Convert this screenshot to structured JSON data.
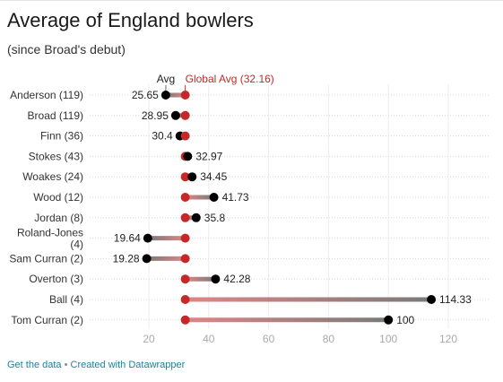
{
  "header": {
    "title": "Average of England bowlers",
    "subtitle": "(since Broad's debut)"
  },
  "footer": {
    "get_data": "Get the data",
    "separator": "•",
    "created_with": "Created with Datawrapper"
  },
  "colors": {
    "player_dot": "#000000",
    "global_dot": "#c62828",
    "global_line": "#e36d6d",
    "bar_high": "#7a7a7a",
    "bar_low": "#e08585",
    "grid": "#d8d8d8",
    "tick_text": "#aaaaaa"
  },
  "chart_data": {
    "type": "dot-range",
    "title": "Average of England bowlers",
    "subtitle": "(since Broad's debut)",
    "legend": {
      "player": "Avg",
      "reference": "Global Avg (32.16)"
    },
    "reference_value": 32.16,
    "categories": [
      "Anderson (119)",
      "Broad (119)",
      "Finn (36)",
      "Stokes (43)",
      "Woakes (24)",
      "Wood (12)",
      "Jordan (8)",
      "Roland-Jones (4)",
      "Sam Curran (2)",
      "Overton (3)",
      "Ball (4)",
      "Tom Curran (2)"
    ],
    "values": [
      25.65,
      28.95,
      30.4,
      32.97,
      34.45,
      41.73,
      35.8,
      19.64,
      19.28,
      42.28,
      114.33,
      100
    ],
    "labels": [
      "25.65",
      "28.95",
      "30.4",
      "32.97",
      "34.45",
      "41.73",
      "35.8",
      "19.64",
      "19.28",
      "42.28",
      "114.33",
      "100"
    ],
    "xlim": [
      10,
      130
    ],
    "xticks": [
      20,
      40,
      60,
      80,
      100,
      120
    ],
    "grid": true
  }
}
